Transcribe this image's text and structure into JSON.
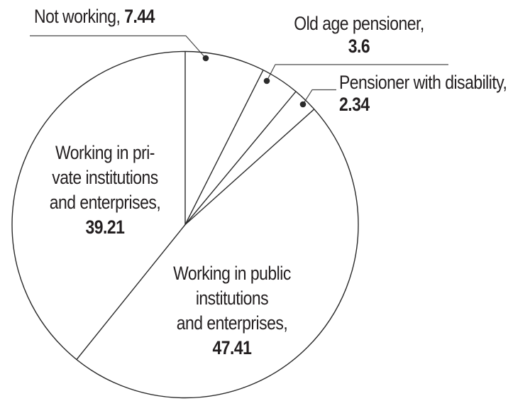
{
  "chart_data": {
    "type": "pie",
    "title": "",
    "values_are": "percent",
    "start_angle_deg": 0,
    "direction": "clockwise",
    "legend_position": "none",
    "labels_on_chart": true,
    "fill": "none",
    "series": [
      {
        "name": "Not working",
        "value": 7.44
      },
      {
        "name": "Old age pensioner",
        "value": 3.6
      },
      {
        "name": "Pensioner with disability",
        "value": 2.34
      },
      {
        "name": "Working in public institutions and enterprises",
        "value": 47.41
      },
      {
        "name": "Working in private institutions and enterprises",
        "value": 39.21
      }
    ]
  },
  "labels": {
    "not_working": {
      "name": "Not working,",
      "value": "7.44"
    },
    "old_age": {
      "line1": "Old age pensioner,",
      "value": "3.6"
    },
    "disability": {
      "line1": "Pensioner with disability,",
      "value": "2.34"
    },
    "private_work": {
      "line1": "Working in pri-",
      "line2": "vate institutions",
      "line3": "and enterprises,",
      "value": "39.21"
    },
    "public_work": {
      "line1": "Working in public",
      "line2": "institutions",
      "line3": "and enterprises,",
      "value": "47.41"
    }
  },
  "colors": {
    "outline": "#2b2b2b",
    "leader": "#4a4a4a",
    "text": "#231f20",
    "background": "#ffffff"
  }
}
